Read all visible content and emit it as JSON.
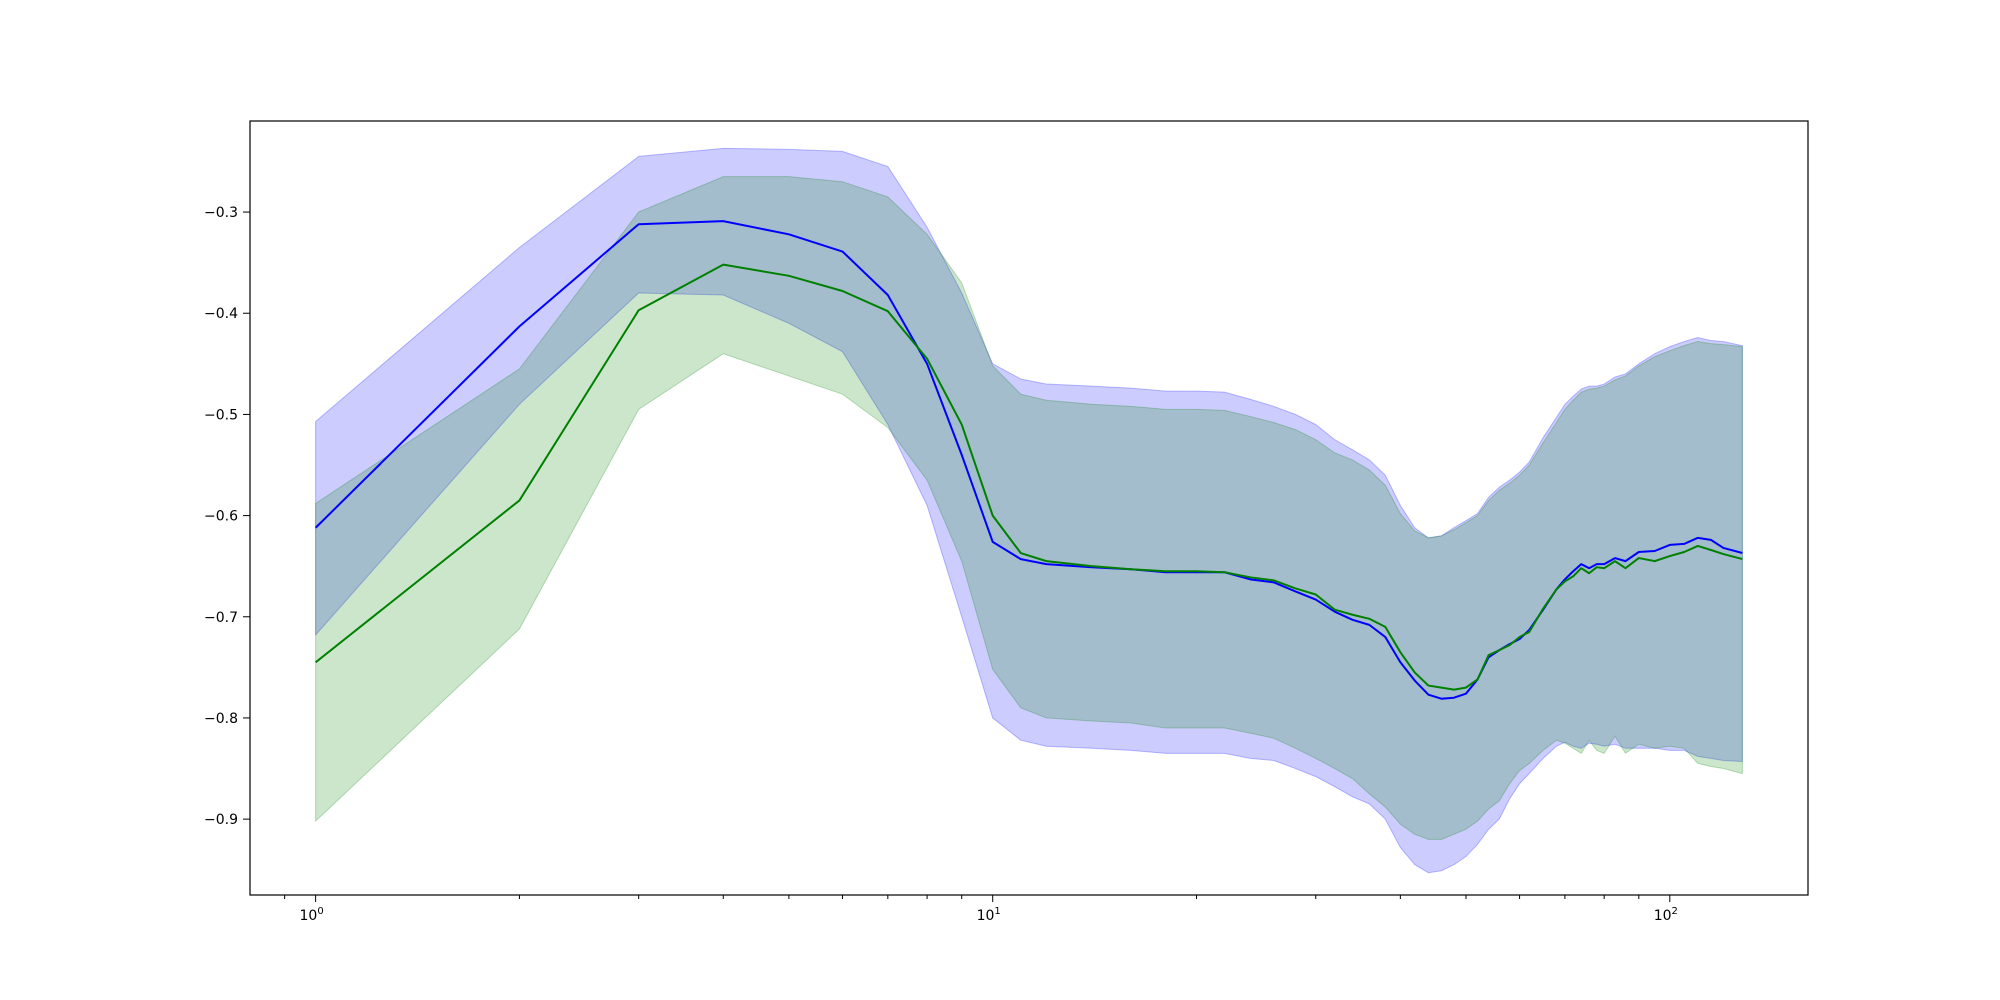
{
  "chart_data": {
    "type": "line",
    "title": "",
    "xlabel": "",
    "ylabel": "",
    "xscale": "log",
    "xlim": [
      0.8,
      160
    ],
    "ylim": [
      -0.975,
      -0.21
    ],
    "grid": false,
    "legend": "none",
    "x_tick_labels": [
      {
        "value": 1,
        "base": "10",
        "exp": "0"
      },
      {
        "value": 10,
        "base": "10",
        "exp": "1"
      },
      {
        "value": 100,
        "base": "10",
        "exp": "2"
      }
    ],
    "y_tick_labels": [
      {
        "value": -0.3,
        "label": "−0.3"
      },
      {
        "value": -0.4,
        "label": "−0.4"
      },
      {
        "value": -0.5,
        "label": "−0.5"
      },
      {
        "value": -0.6,
        "label": "−0.6"
      },
      {
        "value": -0.7,
        "label": "−0.7"
      },
      {
        "value": -0.8,
        "label": "−0.8"
      },
      {
        "value": -0.9,
        "label": "−0.9"
      }
    ],
    "x": [
      1,
      2,
      3,
      4,
      5,
      6,
      7,
      8,
      9,
      10,
      11,
      12,
      14,
      16,
      18,
      20,
      22,
      24,
      26,
      28,
      30,
      32,
      34,
      36,
      38,
      40,
      42,
      44,
      46,
      48,
      50,
      52,
      54,
      56,
      58,
      60,
      62,
      65,
      68,
      70,
      72,
      74,
      76,
      78,
      80,
      83,
      86,
      90,
      95,
      100,
      105,
      110,
      115,
      120,
      128
    ],
    "series": [
      {
        "color": "#0000ff",
        "band_color": "#0000ff",
        "band_opacity": 0.2,
        "values": [
          -0.612,
          -0.413,
          -0.312,
          -0.309,
          -0.322,
          -0.339,
          -0.382,
          -0.45,
          -0.54,
          -0.626,
          -0.643,
          -0.648,
          -0.651,
          -0.653,
          -0.656,
          -0.656,
          -0.656,
          -0.663,
          -0.666,
          -0.675,
          -0.683,
          -0.695,
          -0.703,
          -0.708,
          -0.72,
          -0.745,
          -0.763,
          -0.777,
          -0.781,
          -0.78,
          -0.776,
          -0.762,
          -0.74,
          -0.733,
          -0.727,
          -0.722,
          -0.713,
          -0.693,
          -0.673,
          -0.663,
          -0.655,
          -0.648,
          -0.652,
          -0.648,
          -0.648,
          -0.642,
          -0.645,
          -0.636,
          -0.635,
          -0.629,
          -0.628,
          -0.622,
          -0.624,
          -0.632,
          -0.637
        ],
        "upper": [
          -0.507,
          -0.335,
          -0.245,
          -0.237,
          -0.238,
          -0.24,
          -0.255,
          -0.315,
          -0.38,
          -0.45,
          -0.465,
          -0.47,
          -0.472,
          -0.474,
          -0.477,
          -0.477,
          -0.478,
          -0.485,
          -0.492,
          -0.5,
          -0.51,
          -0.525,
          -0.535,
          -0.545,
          -0.56,
          -0.59,
          -0.612,
          -0.622,
          -0.62,
          -0.612,
          -0.605,
          -0.598,
          -0.582,
          -0.572,
          -0.565,
          -0.557,
          -0.547,
          -0.523,
          -0.503,
          -0.49,
          -0.482,
          -0.475,
          -0.472,
          -0.472,
          -0.47,
          -0.463,
          -0.46,
          -0.45,
          -0.44,
          -0.433,
          -0.428,
          -0.424,
          -0.427,
          -0.428,
          -0.432
        ],
        "lower": [
          -0.718,
          -0.49,
          -0.38,
          -0.382,
          -0.41,
          -0.438,
          -0.51,
          -0.59,
          -0.7,
          -0.8,
          -0.822,
          -0.828,
          -0.83,
          -0.832,
          -0.835,
          -0.835,
          -0.835,
          -0.84,
          -0.842,
          -0.85,
          -0.858,
          -0.868,
          -0.878,
          -0.885,
          -0.9,
          -0.928,
          -0.945,
          -0.953,
          -0.951,
          -0.945,
          -0.937,
          -0.925,
          -0.91,
          -0.9,
          -0.88,
          -0.865,
          -0.855,
          -0.84,
          -0.828,
          -0.824,
          -0.828,
          -0.83,
          -0.825,
          -0.826,
          -0.828,
          -0.826,
          -0.83,
          -0.83,
          -0.83,
          -0.832,
          -0.832,
          -0.838,
          -0.84,
          -0.842,
          -0.843
        ]
      },
      {
        "color": "#008000",
        "band_color": "#008000",
        "band_opacity": 0.2,
        "values": [
          -0.745,
          -0.585,
          -0.397,
          -0.352,
          -0.363,
          -0.378,
          -0.398,
          -0.445,
          -0.51,
          -0.6,
          -0.637,
          -0.645,
          -0.65,
          -0.653,
          -0.655,
          -0.655,
          -0.656,
          -0.661,
          -0.664,
          -0.672,
          -0.678,
          -0.693,
          -0.698,
          -0.702,
          -0.71,
          -0.735,
          -0.755,
          -0.768,
          -0.77,
          -0.772,
          -0.77,
          -0.762,
          -0.738,
          -0.733,
          -0.728,
          -0.72,
          -0.715,
          -0.692,
          -0.673,
          -0.665,
          -0.66,
          -0.652,
          -0.657,
          -0.651,
          -0.652,
          -0.645,
          -0.652,
          -0.642,
          -0.645,
          -0.64,
          -0.636,
          -0.63,
          -0.634,
          -0.638,
          -0.643
        ],
        "upper": [
          -0.588,
          -0.455,
          -0.3,
          -0.265,
          -0.265,
          -0.27,
          -0.285,
          -0.322,
          -0.37,
          -0.452,
          -0.48,
          -0.486,
          -0.49,
          -0.492,
          -0.495,
          -0.495,
          -0.496,
          -0.502,
          -0.508,
          -0.515,
          -0.525,
          -0.538,
          -0.545,
          -0.555,
          -0.57,
          -0.598,
          -0.615,
          -0.622,
          -0.62,
          -0.614,
          -0.607,
          -0.6,
          -0.585,
          -0.575,
          -0.568,
          -0.56,
          -0.55,
          -0.528,
          -0.508,
          -0.495,
          -0.486,
          -0.478,
          -0.475,
          -0.474,
          -0.472,
          -0.466,
          -0.462,
          -0.452,
          -0.443,
          -0.437,
          -0.432,
          -0.428,
          -0.43,
          -0.431,
          -0.433
        ],
        "lower": [
          -0.902,
          -0.712,
          -0.495,
          -0.44,
          -0.462,
          -0.48,
          -0.513,
          -0.565,
          -0.645,
          -0.752,
          -0.79,
          -0.8,
          -0.803,
          -0.805,
          -0.81,
          -0.81,
          -0.81,
          -0.815,
          -0.82,
          -0.83,
          -0.84,
          -0.85,
          -0.86,
          -0.875,
          -0.888,
          -0.905,
          -0.915,
          -0.92,
          -0.92,
          -0.915,
          -0.91,
          -0.902,
          -0.89,
          -0.882,
          -0.865,
          -0.852,
          -0.845,
          -0.832,
          -0.822,
          -0.825,
          -0.83,
          -0.835,
          -0.822,
          -0.832,
          -0.835,
          -0.818,
          -0.835,
          -0.826,
          -0.83,
          -0.828,
          -0.83,
          -0.845,
          -0.848,
          -0.85,
          -0.855
        ]
      }
    ]
  }
}
